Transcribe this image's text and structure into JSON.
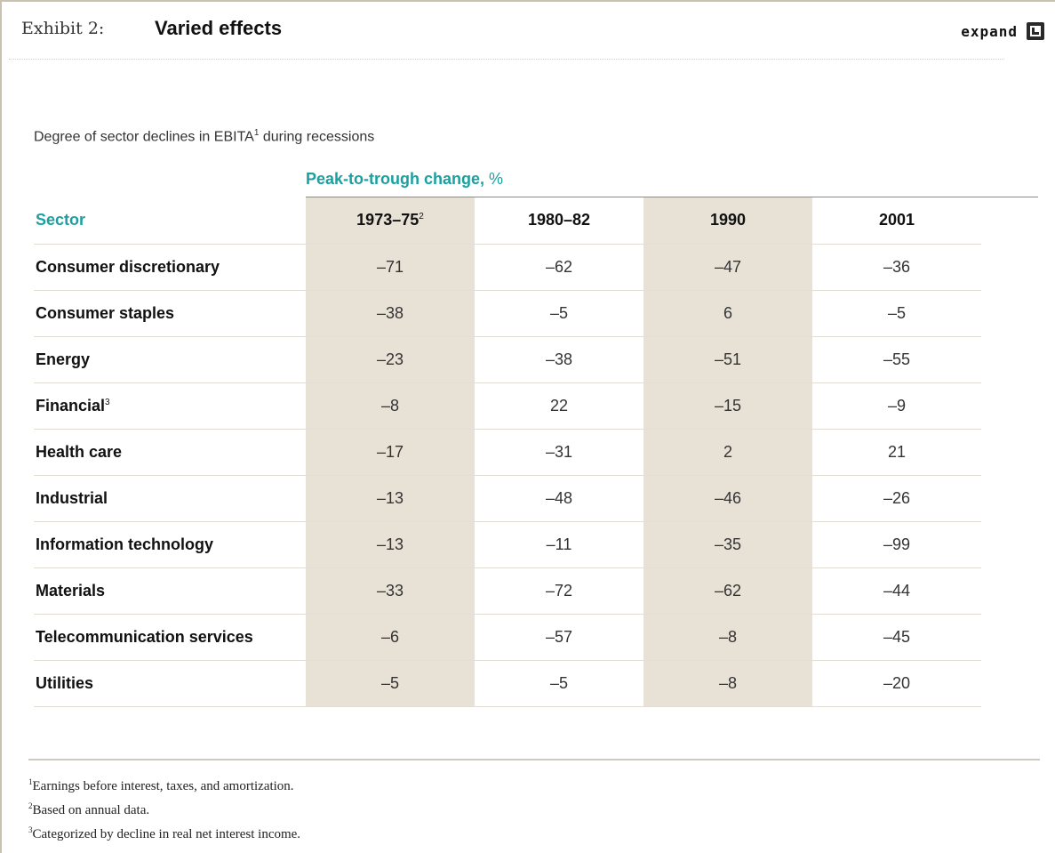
{
  "header": {
    "exhibit_label": "Exhibit 2:",
    "title": "Varied effects",
    "expand_label": "expand"
  },
  "chart_data": {
    "type": "table",
    "title": "Degree of sector declines in EBITA",
    "title_footnote": "1",
    "title_suffix": " during recessions",
    "group_label": "Peak-to-trough change,",
    "group_unit": "%",
    "row_header": "Sector",
    "columns": [
      {
        "label": "1973–75",
        "footnote": "2"
      },
      {
        "label": "1980–82",
        "footnote": ""
      },
      {
        "label": "1990",
        "footnote": ""
      },
      {
        "label": "2001",
        "footnote": ""
      }
    ],
    "rows": [
      {
        "sector": "Consumer discretionary",
        "footnote": "",
        "values": [
          "–71",
          "–62",
          "–47",
          "–36"
        ]
      },
      {
        "sector": "Consumer staples",
        "footnote": "",
        "values": [
          "–38",
          "–5",
          "6",
          "–5"
        ]
      },
      {
        "sector": "Energy",
        "footnote": "",
        "values": [
          "–23",
          "–38",
          "–51",
          "–55"
        ]
      },
      {
        "sector": "Financial",
        "footnote": "3",
        "values": [
          "–8",
          "22",
          "–15",
          "–9"
        ]
      },
      {
        "sector": "Health care",
        "footnote": "",
        "values": [
          "–17",
          "–31",
          "2",
          "21"
        ]
      },
      {
        "sector": "Industrial",
        "footnote": "",
        "values": [
          "–13",
          "–48",
          "–46",
          "–26"
        ]
      },
      {
        "sector": "Information technology",
        "footnote": "",
        "values": [
          "–13",
          "–11",
          "–35",
          "–99"
        ]
      },
      {
        "sector": "Materials",
        "footnote": "",
        "values": [
          "–33",
          "–72",
          "–62",
          "–44"
        ]
      },
      {
        "sector": "Telecommunication services",
        "footnote": "",
        "values": [
          "–6",
          "–57",
          "–8",
          "–45"
        ]
      },
      {
        "sector": "Utilities",
        "footnote": "",
        "values": [
          "–5",
          "–5",
          "–8",
          "–20"
        ]
      }
    ],
    "shaded_columns": [
      "1973–75",
      "1990"
    ]
  },
  "footnotes": [
    {
      "mark": "1",
      "text": "Earnings before interest, taxes, and amortization."
    },
    {
      "mark": "2",
      "text": "Based on annual data."
    },
    {
      "mark": "3",
      "text": "Categorized by decline in real net interest income."
    }
  ],
  "colors": {
    "accent": "#1aa0a0",
    "shade": "#e8e1d6"
  }
}
